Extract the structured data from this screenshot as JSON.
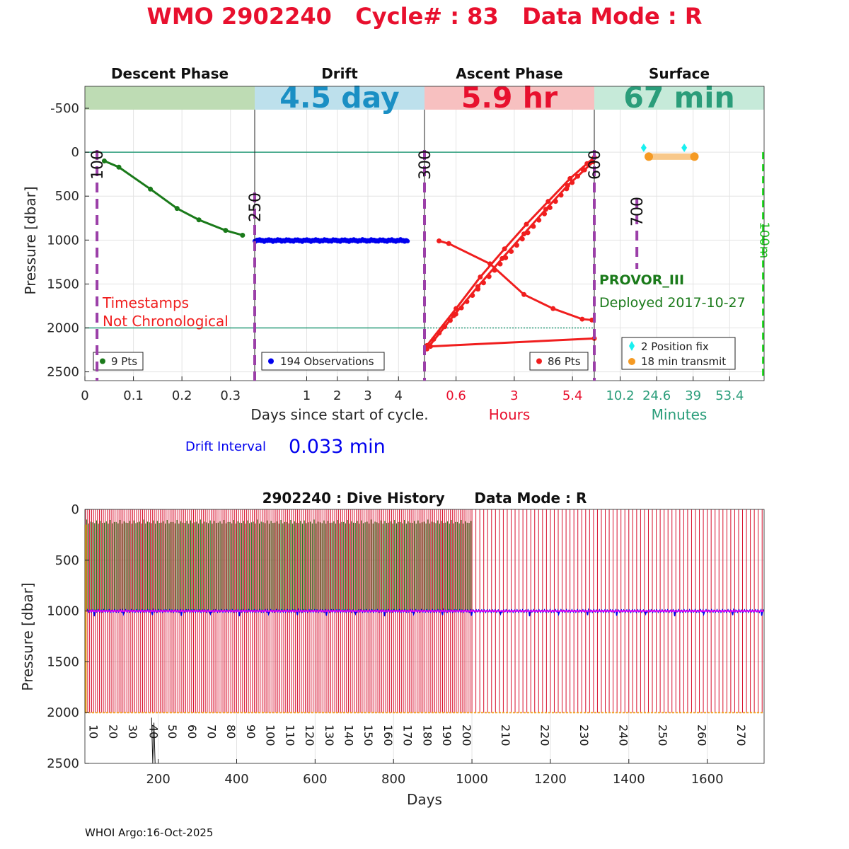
{
  "header": {
    "title": "WMO 2902240   Cycle# : 83   Data Mode : R",
    "title_color": "#e8102e"
  },
  "cycle_panel": {
    "y_tick_labels": [
      "-500",
      "0",
      "500",
      "1000",
      "1500",
      "2000",
      "2500"
    ],
    "y_ticks": [
      -500,
      0,
      500,
      1000,
      1500,
      2000,
      2500
    ],
    "ylabel": "Pressure [dbar]",
    "ylim": [
      -750,
      2600
    ],
    "phases": [
      {
        "name": "Descent Phase",
        "duration": "",
        "bar_color": "#bedcb4",
        "text_color": "#1a7a1a"
      },
      {
        "name": "Drift",
        "duration": "4.5 day",
        "bar_color": "#bde0ec",
        "text_color": "#1a8fc4"
      },
      {
        "name": "Ascent Phase",
        "duration": "5.9 hr",
        "bar_color": "#f7c0c0",
        "text_color": "#e8102e"
      },
      {
        "name": "Surface",
        "duration": "67 min",
        "bar_color": "#c6ead9",
        "text_color": "#2a9d7a"
      }
    ],
    "descent": {
      "xlim": [
        0,
        0.35
      ],
      "x_ticks": [
        0,
        0.1,
        0.2,
        0.3
      ],
      "x_tick_labels": [
        "0",
        "0.1",
        "0.2",
        "0.3"
      ],
      "marker_days": [
        0.025
      ],
      "marker_labels": [
        "100"
      ],
      "points": [
        [
          0.04,
          100
        ],
        [
          0.07,
          170
        ],
        [
          0.135,
          420
        ],
        [
          0.19,
          640
        ],
        [
          0.235,
          770
        ],
        [
          0.29,
          890
        ],
        [
          0.325,
          945
        ]
      ],
      "legend": "9 Pts",
      "color": "#1a7a1a",
      "note_line1": "Timestamps",
      "note_line2": "Not Chronological",
      "note_color": "#f01e1e"
    },
    "drift": {
      "xlim": [
        -0.7,
        4.85
      ],
      "x_ticks": [
        1,
        2,
        3,
        4
      ],
      "x_tick_labels": [
        "1",
        "2",
        "3",
        "4"
      ],
      "marker_days": [
        -0.7
      ],
      "marker_labels": [
        "250"
      ],
      "start_day": -0.7,
      "end_day": 4.3,
      "mean_pressure": 1005,
      "legend": "194 Observations",
      "color": "#0000ee",
      "xlabel": "Days since start of cycle."
    },
    "ascent": {
      "xlim": [
        -0.7,
        6.3
      ],
      "x_ticks": [
        0.6,
        3,
        5.4
      ],
      "x_tick_labels": [
        "0.6",
        "3",
        "5.4"
      ],
      "marker_hours": [
        -0.7,
        6.3
      ],
      "marker_labels": [
        "300",
        "600"
      ],
      "line1": [
        [
          -0.1,
          1010
        ],
        [
          0.3,
          1040
        ],
        [
          2.0,
          1270
        ],
        [
          3.4,
          1620
        ],
        [
          4.6,
          1780
        ],
        [
          5.8,
          1900
        ],
        [
          6.2,
          1910
        ]
      ],
      "line2": [
        [
          -0.6,
          2240
        ],
        [
          0.5,
          1860
        ],
        [
          1.5,
          1530
        ],
        [
          2.5,
          1210
        ],
        [
          3.4,
          930
        ],
        [
          4.3,
          650
        ],
        [
          5.2,
          380
        ],
        [
          5.9,
          200
        ],
        [
          6.25,
          110
        ]
      ],
      "line3": [
        [
          -0.6,
          2200
        ],
        [
          0.6,
          1780
        ],
        [
          1.6,
          1420
        ],
        [
          2.6,
          1100
        ],
        [
          3.5,
          820
        ],
        [
          4.4,
          560
        ],
        [
          5.3,
          300
        ],
        [
          6.0,
          130
        ],
        [
          6.3,
          60
        ]
      ],
      "line4": [
        [
          -0.45,
          2210
        ],
        [
          6.3,
          2120
        ]
      ],
      "legend": "86 Pts",
      "color": "#f01e1e",
      "xlabel": "Hours"
    },
    "surface": {
      "xlim": [
        0,
        67
      ],
      "x_ticks": [
        10.2,
        24.6,
        39,
        53.4
      ],
      "x_tick_labels": [
        "10.2",
        "24.6",
        "39",
        "53.4"
      ],
      "marker_minutes": [
        16.8
      ],
      "marker_labels": [
        "700"
      ],
      "green_line_minute": 66.6,
      "green_line_label": "100m",
      "position_fixes": [
        [
          19.5,
          -50
        ],
        [
          35.5,
          -50
        ]
      ],
      "transmit": [
        [
          21.5,
          50
        ],
        [
          39.5,
          50
        ]
      ],
      "legend_fix": "2 Position fix",
      "legend_transmit": "18 min transmit",
      "float_type": "PROVOR_III",
      "deployed": "Deployed 2017-10-27",
      "xlabel": "Minutes",
      "fix_color": "#18f0f0",
      "transmit_color": "#f59a23"
    },
    "drift_interval_label": "Drift Interval",
    "drift_interval_value": "0.033 min"
  },
  "history_panel": {
    "title": "2902240 : Dive History      Data Mode : R",
    "chart_data": {
      "type": "line",
      "xlim": [
        13,
        1745
      ],
      "ylim": [
        0,
        2500
      ],
      "x_ticks": [
        200,
        400,
        600,
        800,
        1000,
        1200,
        1400,
        1600
      ],
      "x_tick_labels": [
        "200",
        "400",
        "600",
        "800",
        "1000",
        "1200",
        "1400",
        "1600"
      ],
      "y_ticks": [
        0,
        500,
        1000,
        1500,
        2000,
        2500
      ],
      "y_tick_labels": [
        "0",
        "500",
        "1000",
        "1500",
        "2000",
        "2500"
      ],
      "xlabel": "Days",
      "ylabel": "Pressure [dbar]",
      "cycle_marks": [
        {
          "day": 25,
          "label": "10"
        },
        {
          "day": 75,
          "label": "20"
        },
        {
          "day": 125,
          "label": "30"
        },
        {
          "day": 178,
          "label": "40"
        },
        {
          "day": 226,
          "label": "50"
        },
        {
          "day": 276,
          "label": "60"
        },
        {
          "day": 326,
          "label": "70"
        },
        {
          "day": 376,
          "label": "80"
        },
        {
          "day": 426,
          "label": "90"
        },
        {
          "day": 476,
          "label": "100"
        },
        {
          "day": 526,
          "label": "110"
        },
        {
          "day": 576,
          "label": "120"
        },
        {
          "day": 626,
          "label": "130"
        },
        {
          "day": 676,
          "label": "140"
        },
        {
          "day": 726,
          "label": "150"
        },
        {
          "day": 776,
          "label": "160"
        },
        {
          "day": 826,
          "label": "170"
        },
        {
          "day": 876,
          "label": "180"
        },
        {
          "day": 926,
          "label": "190"
        },
        {
          "day": 976,
          "label": "200"
        },
        {
          "day": 1076,
          "label": "210"
        },
        {
          "day": 1176,
          "label": "220"
        },
        {
          "day": 1276,
          "label": "230"
        },
        {
          "day": 1376,
          "label": "240"
        },
        {
          "day": 1476,
          "label": "250"
        },
        {
          "day": 1576,
          "label": "260"
        },
        {
          "day": 1676,
          "label": "270"
        }
      ],
      "early_cycle_interval_days": 5,
      "late_cycle_interval_days": 10,
      "interval_change_day": 1000,
      "drift_pressure": 1000,
      "profile_pressure": 2000,
      "series_colors": {
        "descent": "#1a7a1a",
        "drift": "#0000ee",
        "ascent": "#d8102e",
        "park_mean": "#ff00ff",
        "bottom": "#f5a623"
      }
    }
  },
  "footer": {
    "credit": "WHOI Argo:16-Oct-2025"
  }
}
